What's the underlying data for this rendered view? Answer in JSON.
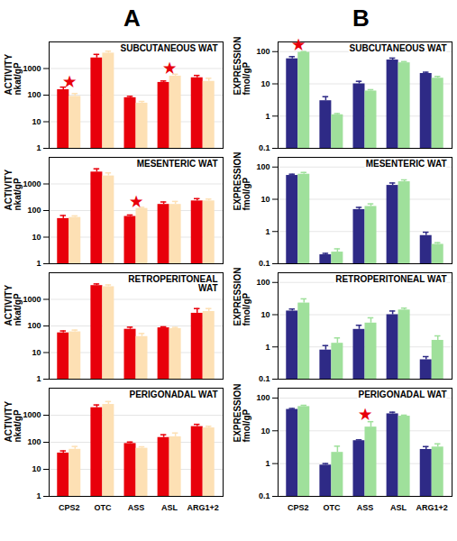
{
  "panel_labels": [
    "A",
    "B"
  ],
  "chart_data": [
    {
      "type": "bar",
      "title": "SUBCUTANEOUS WAT",
      "y_label": [
        "ACTIVITY",
        "nkat/gP"
      ],
      "categories": [
        "CPS2",
        "OTC",
        "ASS",
        "ASL",
        "ARG1+2"
      ],
      "series": [
        {
          "color": "#e8000b",
          "values": [
            160,
            2500,
            80,
            300,
            450
          ],
          "errors": [
            40,
            900,
            10,
            40,
            100
          ]
        },
        {
          "color": "#fde0b4",
          "values": [
            90,
            3800,
            50,
            520,
            330
          ],
          "errors": [
            25,
            700,
            8,
            90,
            100
          ]
        }
      ],
      "ylim": [
        1,
        10000
      ],
      "yticks": [
        1,
        10,
        100,
        1000
      ],
      "log": "y",
      "grid": true,
      "tick_labels": "y",
      "annotations": [
        {
          "category": "CPS2",
          "text": "★"
        },
        {
          "category": "ASL",
          "text": "★"
        }
      ]
    },
    {
      "type": "bar",
      "title": "SUBCUTANEOUS WAT",
      "y_label": [
        "EXPRESSION",
        "fmol/gP"
      ],
      "categories": [
        "CPS2",
        "OTC",
        "ASS",
        "ASL",
        "ARG1+2"
      ],
      "series": [
        {
          "color": "#2e2a86",
          "values": [
            60,
            3,
            10,
            55,
            21
          ],
          "errors": [
            10,
            1,
            2,
            8,
            2
          ]
        },
        {
          "color": "#9fe09b",
          "values": [
            95,
            1.1,
            6,
            45,
            15
          ],
          "errors": [
            5,
            0.1,
            0.6,
            4,
            2
          ]
        }
      ],
      "ylim": [
        0.1,
        200
      ],
      "yticks": [
        0.1,
        1,
        10,
        100
      ],
      "log": "y",
      "grid": true,
      "tick_labels": "y",
      "annotations": [
        {
          "category": "CPS2",
          "text": "★"
        }
      ]
    },
    {
      "type": "bar",
      "title": "MESENTERIC WAT",
      "y_label": [
        "ACTIVITY",
        "nkat/gP"
      ],
      "categories": [
        "CPS2",
        "OTC",
        "ASS",
        "ASL",
        "ARG1+2"
      ],
      "series": [
        {
          "color": "#e8000b",
          "values": [
            50,
            2800,
            60,
            170,
            230
          ],
          "errors": [
            15,
            900,
            8,
            40,
            50
          ]
        },
        {
          "color": "#fde0b4",
          "values": [
            55,
            2000,
            120,
            170,
            230
          ],
          "errors": [
            8,
            600,
            12,
            50,
            40
          ]
        }
      ],
      "ylim": [
        1,
        10000
      ],
      "yticks": [
        1,
        10,
        100,
        1000
      ],
      "log": "y",
      "grid": true,
      "tick_labels": "y",
      "annotations": [
        {
          "category": "ASS",
          "text": "★"
        }
      ]
    },
    {
      "type": "bar",
      "title": "MESENTERIC WAT",
      "y_label": [
        "EXPRESSION",
        "fmol/gP"
      ],
      "categories": [
        "CPS2",
        "OTC",
        "ASS",
        "ASL",
        "ARG1+2"
      ],
      "series": [
        {
          "color": "#2e2a86",
          "values": [
            55,
            0.19,
            4.8,
            27,
            0.75
          ],
          "errors": [
            5,
            0.02,
            0.8,
            5,
            0.2
          ]
        },
        {
          "color": "#9fe09b",
          "values": [
            60,
            0.23,
            6,
            35,
            0.4
          ],
          "errors": [
            8,
            0.06,
            1.2,
            5,
            0.05
          ]
        }
      ],
      "ylim": [
        0.1,
        200
      ],
      "yticks": [
        0.1,
        1,
        10,
        100
      ],
      "log": "y",
      "grid": true,
      "tick_labels": "y"
    },
    {
      "type": "bar",
      "title": "RETROPERITONEAL\nWAT",
      "y_label": [
        "ACTIVITY",
        "nkat/gP"
      ],
      "categories": [
        "CPS2",
        "OTC",
        "ASS",
        "ASL",
        "ARG1+2"
      ],
      "series": [
        {
          "color": "#e8000b",
          "values": [
            55,
            3300,
            75,
            85,
            300
          ],
          "errors": [
            10,
            500,
            15,
            8,
            150
          ]
        },
        {
          "color": "#fde0b4",
          "values": [
            60,
            3000,
            40,
            80,
            350
          ],
          "errors": [
            10,
            500,
            12,
            8,
            100
          ]
        }
      ],
      "ylim": [
        1,
        10000
      ],
      "yticks": [
        1,
        10,
        100,
        1000
      ],
      "log": "y",
      "grid": true,
      "tick_labels": "y"
    },
    {
      "type": "bar",
      "title": "RETROPERITONEAL WAT",
      "y_label": [
        "EXPRESSION",
        "fmol/gP"
      ],
      "categories": [
        "CPS2",
        "OTC",
        "ASS",
        "ASL",
        "ARG1+2"
      ],
      "series": [
        {
          "color": "#2e2a86",
          "values": [
            13,
            0.8,
            3.5,
            10,
            0.4
          ],
          "errors": [
            2,
            0.3,
            1.2,
            3,
            0.1
          ]
        },
        {
          "color": "#9fe09b",
          "values": [
            23,
            1.3,
            5.5,
            14,
            1.6
          ],
          "errors": [
            8,
            0.6,
            2.5,
            2,
            0.6
          ]
        }
      ],
      "ylim": [
        0.1,
        200
      ],
      "yticks": [
        0.1,
        1,
        10,
        100
      ],
      "log": "y",
      "grid": true,
      "tick_labels": "y"
    },
    {
      "type": "bar",
      "title": "PERIGONADAL WAT",
      "y_label": [
        "ACTIVITY",
        "nkat/gP"
      ],
      "categories": [
        "CPS2",
        "OTC",
        "ASS",
        "ASL",
        "ARG1+2"
      ],
      "series": [
        {
          "color": "#e8000b",
          "values": [
            40,
            1900,
            90,
            150,
            380
          ],
          "errors": [
            8,
            500,
            12,
            40,
            80
          ]
        },
        {
          "color": "#fde0b4",
          "values": [
            55,
            2500,
            60,
            160,
            340
          ],
          "errors": [
            15,
            700,
            8,
            60,
            50
          ]
        }
      ],
      "ylim": [
        1,
        10000
      ],
      "yticks": [
        1,
        10,
        100,
        1000
      ],
      "log": "y",
      "grid": true
    },
    {
      "type": "bar",
      "title": "PERIGONADAL WAT",
      "y_label": [
        "EXPRESSION",
        "fmol/gP"
      ],
      "categories": [
        "CPS2",
        "OTC",
        "ASS",
        "ASL",
        "ARG1+2"
      ],
      "series": [
        {
          "color": "#2e2a86",
          "values": [
            45,
            0.9,
            5,
            33,
            2.7
          ],
          "errors": [
            3,
            0.1,
            0.3,
            4,
            0.6
          ]
        },
        {
          "color": "#9fe09b",
          "values": [
            55,
            2.2,
            13,
            28,
            3.2
          ],
          "errors": [
            5,
            1.2,
            6,
            2,
            0.8
          ]
        }
      ],
      "ylim": [
        0.1,
        200
      ],
      "yticks": [
        0.1,
        1,
        10,
        100
      ],
      "log": "y",
      "grid": true,
      "annotations": [
        {
          "category": "ASS",
          "text": "★"
        }
      ]
    }
  ]
}
